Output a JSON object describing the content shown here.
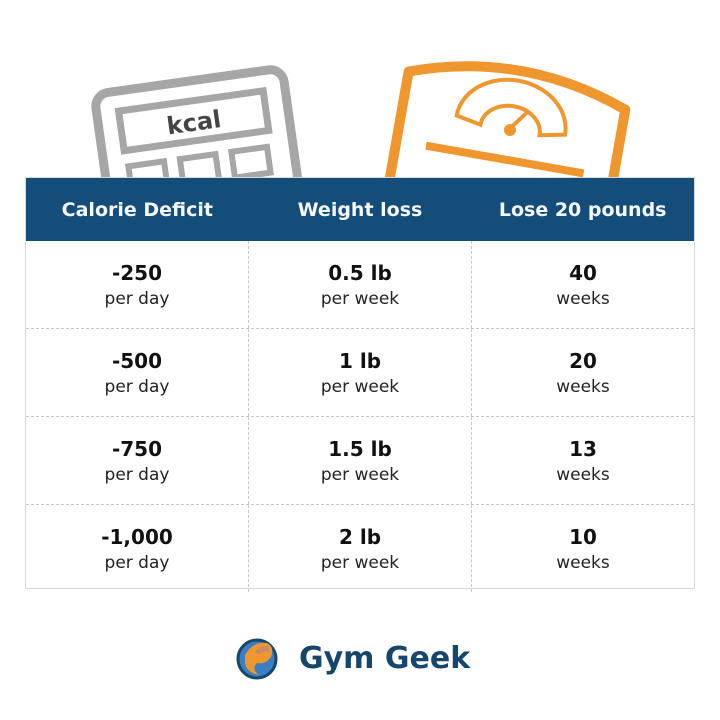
{
  "illustration": {
    "calculator_label": "kcal",
    "calculator_color": "#a6a6a6",
    "scale_color": "#f0962e"
  },
  "table": {
    "headers": [
      "Calorie Deficit",
      "Weight loss",
      "Lose 20 pounds"
    ],
    "header_color": "#144d79",
    "rows": [
      [
        {
          "value": "-250",
          "unit": "per day"
        },
        {
          "value": "0.5 lb",
          "unit": "per week"
        },
        {
          "value": "40",
          "unit": "weeks"
        }
      ],
      [
        {
          "value": "-500",
          "unit": "per day"
        },
        {
          "value": "1 lb",
          "unit": "per week"
        },
        {
          "value": "20",
          "unit": "weeks"
        }
      ],
      [
        {
          "value": "-750",
          "unit": "per day"
        },
        {
          "value": "1.5 lb",
          "unit": "per week"
        },
        {
          "value": "13",
          "unit": "weeks"
        }
      ],
      [
        {
          "value": "-1,000",
          "unit": "per day"
        },
        {
          "value": "2 lb",
          "unit": "per week"
        },
        {
          "value": "10",
          "unit": "weeks"
        }
      ]
    ]
  },
  "brand": {
    "name": "Gym Geek",
    "logo_icon": "flexing-arm-globe-icon"
  }
}
